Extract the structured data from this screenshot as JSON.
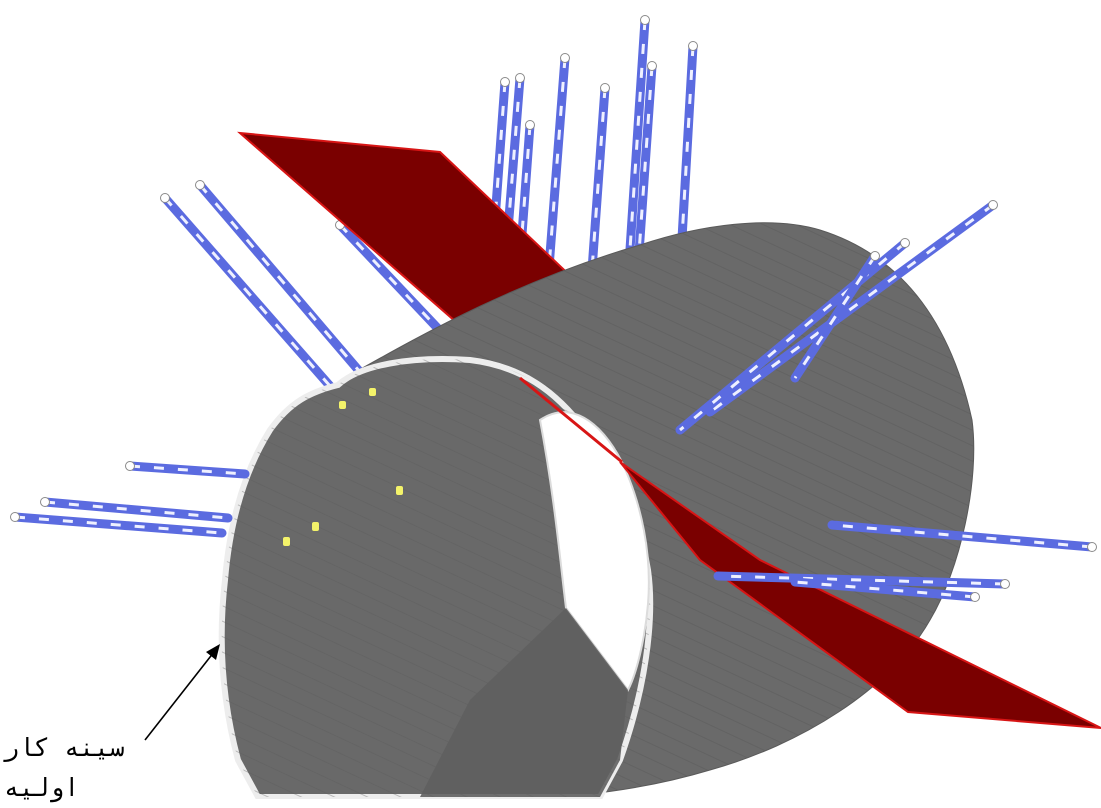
{
  "figure": {
    "annotation": {
      "label": "سینه کار\nاولیه"
    },
    "colors": {
      "tunnel_shell": "#666666",
      "tunnel_shell_dark": "#555555",
      "tunnel_face_rim": "#e9e9e9",
      "fault_plane": "#7a0000",
      "fault_plane_edge": "#d81515",
      "rock_bolt": "#5b6be0",
      "rock_bolt_light": "#ffffff",
      "face_markers": "#f4f36a",
      "background": "#ffffff"
    }
  }
}
